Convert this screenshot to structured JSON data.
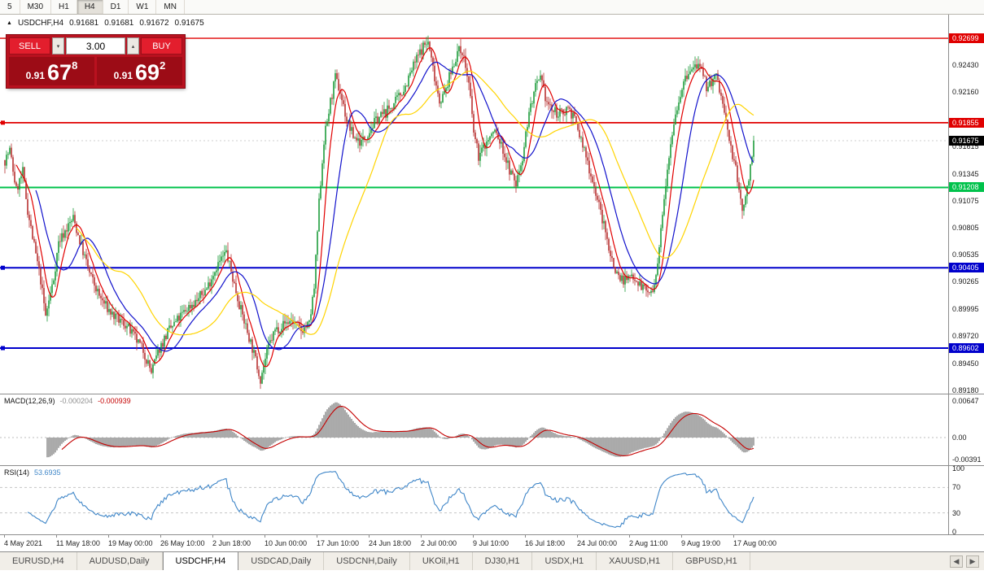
{
  "icons": {
    "chart_marker": "▲",
    "spin_down": "▾",
    "spin_up": "▴",
    "tabs_prev": "◀",
    "tabs_next": "▶"
  },
  "toolbar": {
    "timeframes": [
      "5",
      "M30",
      "H1",
      "H4",
      "D1",
      "W1",
      "MN"
    ],
    "active": "H4"
  },
  "chart": {
    "symbol": "USDCHF,H4",
    "ohlc": {
      "open": "0.91681",
      "high": "0.91681",
      "low": "0.91672",
      "close": "0.91675"
    }
  },
  "trade_panel": {
    "sell_label": "SELL",
    "buy_label": "BUY",
    "volume": "3.00",
    "sell_price": {
      "prefix": "0.91",
      "big": "67",
      "sup": "8"
    },
    "buy_price": {
      "prefix": "0.91",
      "big": "69",
      "sup": "2"
    }
  },
  "price_axis": {
    "ticks": [
      "0.92430",
      "0.92160",
      "0.91615",
      "0.91345",
      "0.91075",
      "0.90805",
      "0.90535",
      "0.90265",
      "0.89995",
      "0.89720",
      "0.89450",
      "0.89180"
    ],
    "current_price": "0.91675",
    "current_price_color": "#000000"
  },
  "levels": [
    {
      "label": "0.92699",
      "value": 0.92699,
      "color": "#e00000",
      "width": 1.4,
      "handle": false
    },
    {
      "label": "0.91855",
      "value": 0.91855,
      "color": "#e00000",
      "width": 1.8,
      "handle": true
    },
    {
      "label": "0.91208",
      "value": 0.91208,
      "color": "#00c24b",
      "width": 2,
      "handle": false
    },
    {
      "label": "0.90405",
      "value": 0.90405,
      "color": "#0000cc",
      "width": 2,
      "handle": true
    },
    {
      "label": "0.89602",
      "value": 0.89602,
      "color": "#0000cc",
      "width": 2,
      "handle": true
    }
  ],
  "macd_panel": {
    "label": "MACD(12,26,9)",
    "value_main": "-0.000204",
    "value_signal": "-0.000939",
    "axis": [
      "0.00647",
      "0.00",
      "-0.00391"
    ]
  },
  "rsi_panel": {
    "label": "RSI(14)",
    "value": "53.6935",
    "axis": [
      "100",
      "70",
      "30",
      "0"
    ]
  },
  "time_axis": [
    "4 May 2021",
    "11 May 18:00",
    "19 May 00:00",
    "26 May 10:00",
    "2 Jun 18:00",
    "10 Jun 00:00",
    "17 Jun 10:00",
    "24 Jun 18:00",
    "2 Jul 00:00",
    "9 Jul 10:00",
    "16 Jul 18:00",
    "24 Jul 00:00",
    "2 Aug 11:00",
    "9 Aug 19:00",
    "17 Aug 00:00"
  ],
  "tabs": {
    "items": [
      "EURUSD,H4",
      "AUDUSD,Daily",
      "USDCHF,H4",
      "USDCAD,Daily",
      "USDCNH,Daily",
      "UKOil,H1",
      "DJ30,H1",
      "USDX,H1",
      "XAUUSD,H1",
      "GBPUSD,H1"
    ],
    "active": "USDCHF,H4"
  },
  "chart_data": {
    "type": "candlestick",
    "title": "USDCHF,H4",
    "symbol": "USDCHF",
    "timeframe": "H4",
    "x_labels": [
      "4 May 2021",
      "11 May 18:00",
      "19 May 00:00",
      "26 May 10:00",
      "2 Jun 18:00",
      "10 Jun 00:00",
      "17 Jun 10:00",
      "24 Jun 18:00",
      "2 Jul 00:00",
      "9 Jul 10:00",
      "16 Jul 18:00",
      "24 Jul 00:00",
      "2 Aug 11:00",
      "9 Aug 19:00",
      "17 Aug 00:00"
    ],
    "bars_per_label": 32,
    "total_bars": 461,
    "ylim": [
      0.8915,
      0.9294
    ],
    "last_close": 0.91675,
    "current_bar": {
      "open": 0.91681,
      "high": 0.91681,
      "low": 0.91672,
      "close": 0.91675
    },
    "horizontal_levels": [
      0.92699,
      0.91855,
      0.91208,
      0.90405,
      0.89602
    ],
    "price_path_anchors": [
      [
        0,
        0.9148
      ],
      [
        3,
        0.9158
      ],
      [
        7,
        0.9118
      ],
      [
        11,
        0.9136
      ],
      [
        14,
        0.9098
      ],
      [
        18,
        0.9062
      ],
      [
        22,
        0.9028
      ],
      [
        25,
        0.8992
      ],
      [
        30,
        0.903
      ],
      [
        33,
        0.9066
      ],
      [
        38,
        0.908
      ],
      [
        42,
        0.909
      ],
      [
        47,
        0.9062
      ],
      [
        52,
        0.9035
      ],
      [
        58,
        0.9012
      ],
      [
        63,
        0.9
      ],
      [
        68,
        0.899
      ],
      [
        74,
        0.8984
      ],
      [
        80,
        0.897
      ],
      [
        85,
        0.8958
      ],
      [
        90,
        0.8936
      ],
      [
        95,
        0.896
      ],
      [
        100,
        0.8976
      ],
      [
        106,
        0.8988
      ],
      [
        112,
        0.9
      ],
      [
        118,
        0.9008
      ],
      [
        124,
        0.902
      ],
      [
        130,
        0.9042
      ],
      [
        136,
        0.9056
      ],
      [
        140,
        0.903
      ],
      [
        145,
        0.8998
      ],
      [
        151,
        0.8966
      ],
      [
        157,
        0.893
      ],
      [
        162,
        0.8962
      ],
      [
        166,
        0.8978
      ],
      [
        171,
        0.8984
      ],
      [
        176,
        0.8988
      ],
      [
        182,
        0.8978
      ],
      [
        187,
        0.8984
      ],
      [
        190,
        0.902
      ],
      [
        193,
        0.9105
      ],
      [
        196,
        0.9168
      ],
      [
        200,
        0.9206
      ],
      [
        203,
        0.923
      ],
      [
        206,
        0.9216
      ],
      [
        210,
        0.9188
      ],
      [
        214,
        0.9172
      ],
      [
        219,
        0.9166
      ],
      [
        224,
        0.9178
      ],
      [
        229,
        0.919
      ],
      [
        234,
        0.9196
      ],
      [
        240,
        0.9206
      ],
      [
        246,
        0.9222
      ],
      [
        252,
        0.9246
      ],
      [
        257,
        0.9262
      ],
      [
        260,
        0.9266
      ],
      [
        263,
        0.924
      ],
      [
        267,
        0.9208
      ],
      [
        270,
        0.9214
      ],
      [
        274,
        0.9236
      ],
      [
        278,
        0.9256
      ],
      [
        281,
        0.9258
      ],
      [
        285,
        0.9224
      ],
      [
        288,
        0.9176
      ],
      [
        291,
        0.9152
      ],
      [
        296,
        0.9166
      ],
      [
        301,
        0.9178
      ],
      [
        306,
        0.9158
      ],
      [
        310,
        0.9138
      ],
      [
        314,
        0.9124
      ],
      [
        318,
        0.9152
      ],
      [
        322,
        0.9196
      ],
      [
        326,
        0.922
      ],
      [
        329,
        0.9228
      ],
      [
        333,
        0.9206
      ],
      [
        337,
        0.9196
      ],
      [
        342,
        0.9194
      ],
      [
        346,
        0.9202
      ],
      [
        350,
        0.9188
      ],
      [
        354,
        0.9168
      ],
      [
        358,
        0.9146
      ],
      [
        362,
        0.9122
      ],
      [
        366,
        0.9096
      ],
      [
        370,
        0.9068
      ],
      [
        374,
        0.9042
      ],
      [
        378,
        0.903
      ],
      [
        382,
        0.9028
      ],
      [
        386,
        0.9034
      ],
      [
        390,
        0.9024
      ],
      [
        394,
        0.9018
      ],
      [
        398,
        0.9014
      ],
      [
        401,
        0.904
      ],
      [
        404,
        0.9098
      ],
      [
        407,
        0.9142
      ],
      [
        410,
        0.9178
      ],
      [
        413,
        0.9202
      ],
      [
        416,
        0.922
      ],
      [
        419,
        0.9232
      ],
      [
        422,
        0.9238
      ],
      [
        425,
        0.9244
      ],
      [
        428,
        0.9234
      ],
      [
        431,
        0.9222
      ],
      [
        434,
        0.9226
      ],
      [
        437,
        0.9232
      ],
      [
        440,
        0.9212
      ],
      [
        443,
        0.9186
      ],
      [
        446,
        0.916
      ],
      [
        449,
        0.9138
      ],
      [
        451,
        0.9118
      ],
      [
        453,
        0.91
      ],
      [
        455,
        0.9108
      ],
      [
        457,
        0.9132
      ],
      [
        459,
        0.9156
      ],
      [
        460,
        0.91675
      ]
    ],
    "noise_seed": 7,
    "close_noise": 0.0011,
    "wick_noise": 0.0008,
    "candle_colors": {
      "bull": "#1e9c3c",
      "bear": "#b83232"
    },
    "moving_averages": [
      {
        "name": "MA fast",
        "period": 8,
        "color": "#e10000"
      },
      {
        "name": "MA mid",
        "period": 20,
        "color": "#1212cc"
      },
      {
        "name": "MA slow",
        "period": 45,
        "color": "#ffd400"
      }
    ],
    "macd": {
      "fast": 12,
      "slow": 26,
      "signal": 9,
      "current_main": -0.000204,
      "current_signal": -0.000939,
      "axis_max": 0.00647,
      "axis_min": -0.00391,
      "hist_color": "#9c9c9c",
      "signal_color": "#c40000"
    },
    "rsi": {
      "period": 14,
      "current": 53.6935,
      "levels": [
        30,
        70
      ],
      "range": [
        0,
        100
      ],
      "color": "#3f86c8"
    }
  }
}
